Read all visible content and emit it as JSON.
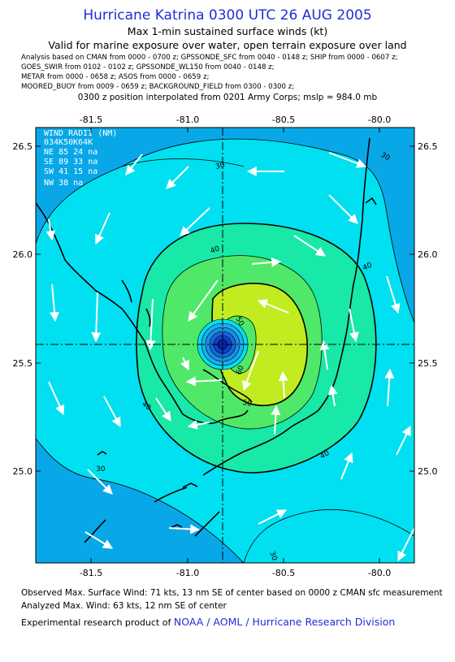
{
  "header": {
    "title": "Hurricane Katrina 0300 UTC 26 AUG 2005",
    "subtitle_1": "Max 1-min sustained surface winds (kt)",
    "subtitle_2": "Valid for marine exposure over water, open terrain exposure over land",
    "sources": [
      "Analysis based on  CMAN from 0000 - 0700 z;  GPSSONDE_SFC from 0040 - 0148 z;  SHIP from 0000 - 0607 z;",
      "GOES_SWIR from 0102 - 0102 z;  GPSSONDE_WL150 from 0040 - 0148 z;",
      "METAR from 0000 - 0658 z;  ASOS from 0000 - 0659 z;",
      "MOORED_BUOY from 0009 - 0659 z;  BACKGROUND_FIELD from 0300 - 0300 z;"
    ],
    "position_note": "0300 z position interpolated from 0201 Army Corps; mslp = 984.0 mb"
  },
  "map": {
    "lon_ticks": [
      "-81.5",
      "-81.0",
      "-80.5",
      "-80.0"
    ],
    "lat_ticks": [
      "26.5",
      "26.0",
      "25.5",
      "25.0"
    ],
    "center": {
      "lon": -80.82,
      "lat": 25.58
    },
    "contour_labels": [
      "30",
      "30",
      "30",
      "40",
      "40",
      "40",
      "40",
      "50",
      "50",
      "60",
      "30"
    ],
    "wind_radii": {
      "title": "WIND RADII (NM)",
      "header": "034K50K64K",
      "rows": [
        {
          "quad": "NE",
          "r34": "85",
          "r50": "24",
          "r64": "na"
        },
        {
          "quad": "SE",
          "r34": "89",
          "r50": "33",
          "r64": "na"
        },
        {
          "quad": "SW",
          "r34": "41",
          "r50": "15",
          "r64": "na"
        },
        {
          "quad": "NW",
          "r34": "38",
          "r50": "na",
          "r64": ""
        }
      ]
    },
    "colors": {
      "bg_20_30": "#08a8e8",
      "c_30_40": "#00e0f0",
      "c_40_50": "#18e8a8",
      "c_50_60": "#50e868",
      "c_60_70": "#c0ec20",
      "core": "#1030d0",
      "arrow": "#ffffff"
    }
  },
  "footer": {
    "observed": "Observed Max. Surface Wind: 71 kts, 13 nm SE of center based on 0000 z CMAN sfc measurement",
    "analyzed": "Analyzed Max. Wind: 63 kts, 12 nm SE of center",
    "credit_prefix": "Experimental research product of",
    "credit_link": "NOAA / AOML / Hurricane Research Division"
  }
}
